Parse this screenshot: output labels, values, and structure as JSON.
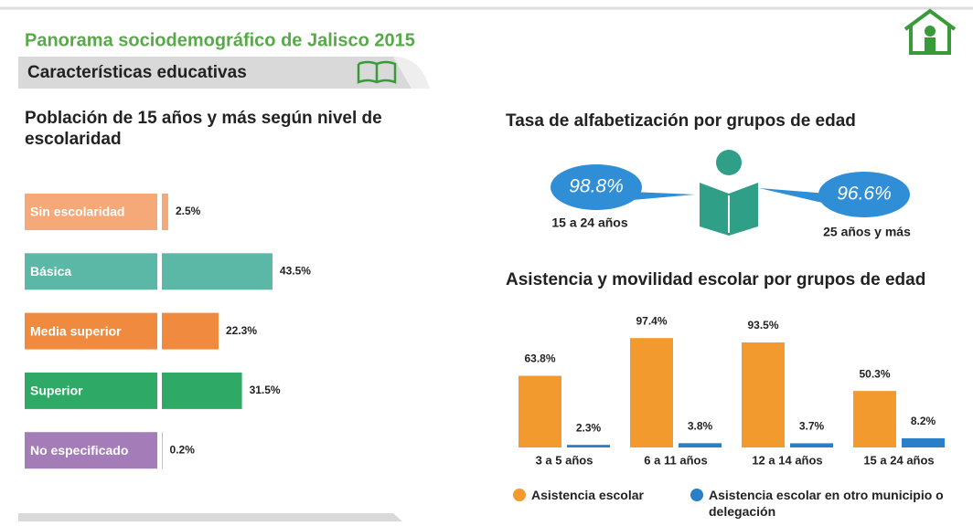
{
  "header": {
    "title": "Panorama sociodemográfico de Jalisco 2015",
    "section": "Características educativas"
  },
  "chart_data": [
    {
      "type": "hbar",
      "title": "Población de 15 años y más según nivel de escolaridad",
      "categories": [
        "Sin escolaridad",
        "Básica",
        "Media superior",
        "Superior",
        "No especificado"
      ],
      "values": [
        2.5,
        43.5,
        22.3,
        31.5,
        0.2
      ],
      "value_labels": [
        "2.5%",
        "43.5%",
        "22.3%",
        "31.5%",
        "0.2%"
      ],
      "colors": [
        "#f5a878",
        "#5cb8a6",
        "#f08a3e",
        "#2eaa66",
        "#a47db8"
      ]
    },
    {
      "type": "callout",
      "title": "Tasa de alfabetización por grupos de edad",
      "categories": [
        "15 a 24 años",
        "25 años y más"
      ],
      "values": [
        98.8,
        96.6
      ],
      "value_labels": [
        "98.8%",
        "96.6%"
      ],
      "color": "#2f8ed6"
    },
    {
      "type": "grouped-bar",
      "title": "Asistencia y movilidad escolar por grupos de edad",
      "categories": [
        "3 a 5 años",
        "6 a 11 años",
        "12 a 14 años",
        "15 a 24 años"
      ],
      "series": [
        {
          "name": "Asistencia escolar",
          "color": "#f39a2e",
          "values": [
            63.8,
            97.4,
            93.5,
            50.3
          ],
          "value_labels": [
            "63.8%",
            "97.4%",
            "93.5%",
            "50.3%"
          ]
        },
        {
          "name": "Asistencia escolar en otro municipio o delegación",
          "color": "#2a7fc8",
          "values": [
            2.3,
            3.8,
            3.7,
            8.2
          ],
          "value_labels": [
            "2.3%",
            "3.8%",
            "3.7%",
            "8.2%"
          ]
        }
      ]
    }
  ]
}
